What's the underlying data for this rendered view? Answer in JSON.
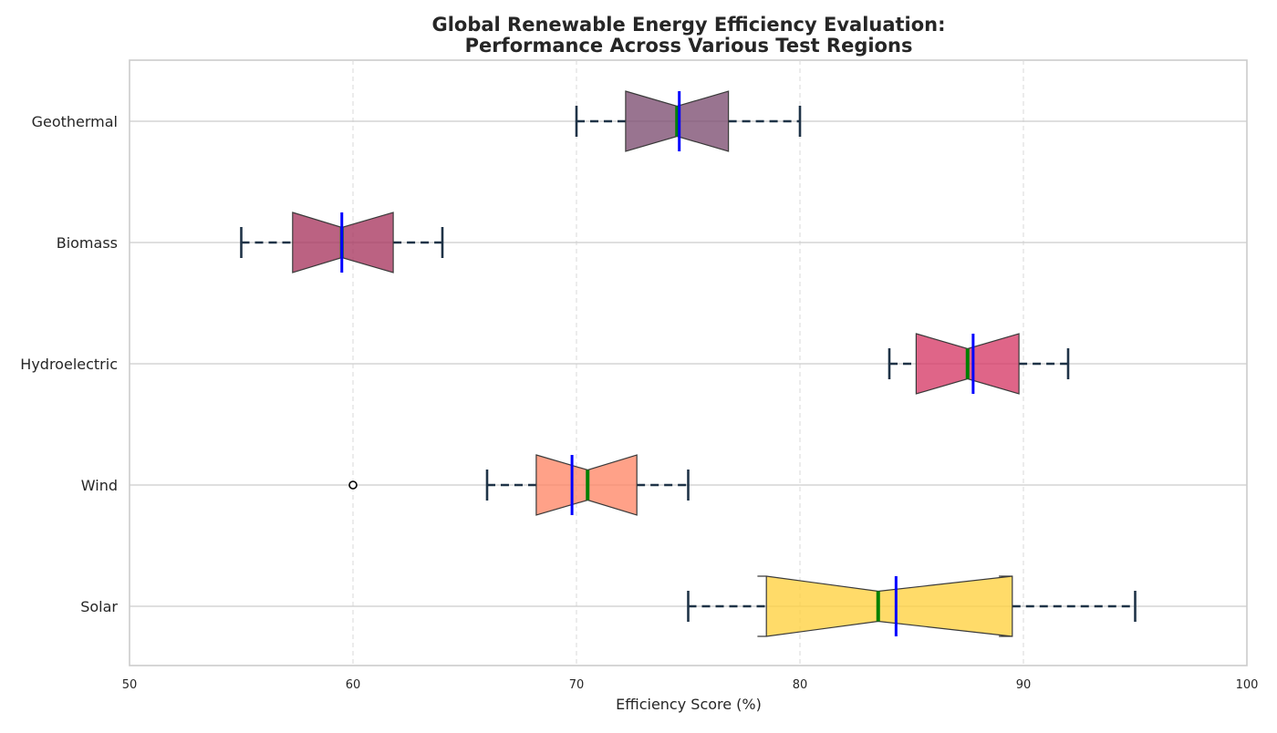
{
  "chart_data": {
    "type": "boxplot",
    "orientation": "horizontal",
    "notched": true,
    "title": "Global Renewable Energy Efficiency Evaluation:\nPerformance Across Various Test Regions",
    "title_lines": [
      "Global Renewable Energy Efficiency Evaluation:",
      "Performance Across Various Test Regions"
    ],
    "xlabel": "Efficiency Score (%)",
    "ylabel": "",
    "xlim": [
      50,
      100
    ],
    "xticks": [
      "50",
      "60",
      "70",
      "80",
      "90",
      "100"
    ],
    "grid": true,
    "legend": null,
    "median_color": "#008000",
    "mean_color": "#0000ff",
    "whisker_color": "#1f3347",
    "categories": [
      "Solar",
      "Wind",
      "Hydroelectric",
      "Biomass",
      "Geothermal"
    ],
    "boxes": [
      {
        "name": "Solar",
        "whisker_low": 75,
        "q1": 78.5,
        "median": 83.5,
        "mean": 84.3,
        "q3": 89.5,
        "whisker_high": 95,
        "notch_low": 78.1,
        "notch_high": 88.9,
        "fliers": [],
        "color": "#ffd13f"
      },
      {
        "name": "Wind",
        "whisker_low": 66,
        "q1": 68.2,
        "median": 70.5,
        "mean": 69.8,
        "q3": 72.7,
        "whisker_high": 75,
        "notch_low": 68.2,
        "notch_high": 72.7,
        "fliers": [
          60
        ],
        "color": "#ff8766"
      },
      {
        "name": "Hydroelectric",
        "whisker_low": 84,
        "q1": 85.2,
        "median": 87.5,
        "mean": 87.75,
        "q3": 89.8,
        "whisker_high": 92,
        "notch_low": 85.2,
        "notch_high": 89.8,
        "fliers": [],
        "color": "#d63a66"
      },
      {
        "name": "Biomass",
        "whisker_low": 55,
        "q1": 57.3,
        "median": 59.5,
        "mean": 59.5,
        "q3": 61.8,
        "whisker_high": 64,
        "notch_low": 57.3,
        "notch_high": 61.8,
        "fliers": [],
        "color": "#a8365f"
      },
      {
        "name": "Geothermal",
        "whisker_low": 70,
        "q1": 72.2,
        "median": 74.5,
        "mean": 74.6,
        "q3": 76.8,
        "whisker_high": 80,
        "notch_low": 72.2,
        "notch_high": 76.8,
        "fliers": [],
        "color": "#7c4d71"
      }
    ]
  }
}
